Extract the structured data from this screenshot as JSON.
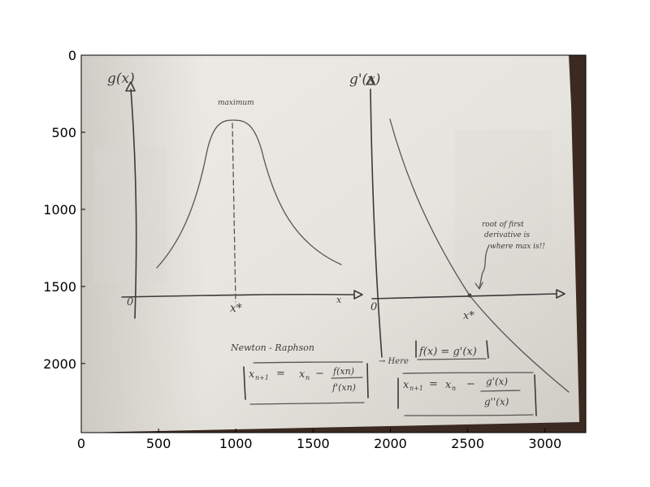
{
  "figure": {
    "x_ticks": [
      "0",
      "500",
      "1000",
      "1500",
      "2000",
      "2500",
      "3000"
    ],
    "y_ticks": [
      "0",
      "500",
      "1000",
      "1500",
      "2000"
    ],
    "xlim": [
      0,
      3264
    ],
    "ylim": [
      2448,
      0
    ]
  },
  "photo": {
    "paper_color": "#e9e7e2",
    "table_color": "#3b2a22",
    "pencil_color": "#555555",
    "left_sketch": {
      "y_axis_label": "g(x)",
      "peak_label": "maximum",
      "x_star_label": "x*",
      "origin_label": "0",
      "x_axis_label": "x"
    },
    "right_sketch": {
      "y_axis_label": "g'(x)",
      "origin_label": "0",
      "x_star_label": "x*",
      "annotation_lines": [
        "root of first",
        "derivative is",
        "where max is!!"
      ]
    },
    "newton_raphson": {
      "title": "Newton - Raphson",
      "formula_lhs": "x",
      "formula_rhs_x": "x",
      "frac_num": "f(xn)",
      "frac_den": "f'(xn)",
      "subscript_n1": "n+1",
      "subscript_n": "n",
      "eq": "=",
      "minus": "−"
    },
    "here_note": "→ Here",
    "substitution": "f(x) = g'(x)",
    "update_rule": {
      "lhs": "x",
      "sub_n1": "n+1",
      "eq": "=",
      "x_n": "x",
      "sub_n": "n",
      "minus": "−",
      "num": "g'(x)",
      "den": "g''(x)"
    }
  }
}
